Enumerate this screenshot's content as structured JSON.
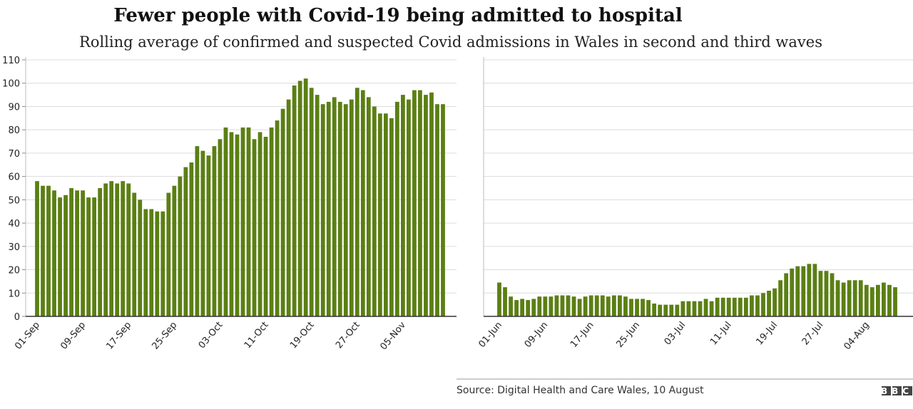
{
  "title": "Fewer people with Covid-19 being admitted to hospital",
  "subtitle": "Rolling average of confirmed and suspected Covid admissions in Wales in second and third waves",
  "source": "Source: Digital Health and Care Wales, 10 August",
  "logo": "BBC",
  "chart_data": [
    {
      "type": "bar",
      "color": "#5b7f14",
      "grid": true,
      "ytick_labels": true,
      "ylim": [
        0,
        110
      ],
      "yticks": [
        0,
        10,
        20,
        30,
        40,
        50,
        60,
        70,
        80,
        90,
        100,
        110
      ],
      "categories": [
        "01-Sep",
        null,
        null,
        null,
        null,
        null,
        null,
        null,
        "09-Sep",
        null,
        null,
        null,
        null,
        null,
        null,
        null,
        "17-Sep",
        null,
        null,
        null,
        null,
        null,
        null,
        null,
        "25-Sep",
        null,
        null,
        null,
        null,
        null,
        null,
        null,
        "03-Oct",
        null,
        null,
        null,
        null,
        null,
        null,
        null,
        "11-Oct",
        null,
        null,
        null,
        null,
        null,
        null,
        null,
        "19-Oct",
        null,
        null,
        null,
        null,
        null,
        null,
        null,
        "27-Oct",
        null,
        null,
        null,
        null,
        null,
        null,
        null,
        "05-Nov",
        null,
        null,
        null,
        null,
        null,
        null,
        null
      ],
      "values": [
        58,
        56,
        56,
        54,
        51,
        52,
        55,
        54,
        54,
        51,
        51,
        55,
        57,
        58,
        57,
        58,
        57,
        53,
        50,
        46,
        46,
        45,
        45,
        53,
        56,
        60,
        64,
        66,
        73,
        71,
        69,
        73,
        76,
        81,
        79,
        78,
        81,
        81,
        76,
        79,
        77,
        81,
        84,
        89,
        93,
        99,
        101,
        102,
        98,
        95,
        91,
        92,
        94,
        92,
        91,
        93,
        98,
        97,
        94,
        90,
        87,
        87,
        85,
        92,
        95,
        93,
        97,
        97,
        95,
        96,
        91,
        91
      ]
    },
    {
      "type": "bar",
      "color": "#5b7f14",
      "grid": true,
      "ytick_labels": false,
      "ylim": [
        0,
        110
      ],
      "yticks": [
        0,
        10,
        20,
        30,
        40,
        50,
        60,
        70,
        80,
        90,
        100,
        110
      ],
      "categories": [
        "01-Jun",
        null,
        null,
        null,
        null,
        null,
        null,
        null,
        "09-Jun",
        null,
        null,
        null,
        null,
        null,
        null,
        null,
        "17-Jun",
        null,
        null,
        null,
        null,
        null,
        null,
        null,
        "25-Jun",
        null,
        null,
        null,
        null,
        null,
        null,
        null,
        "03-Jul",
        null,
        null,
        null,
        null,
        null,
        null,
        null,
        "11-Jul",
        null,
        null,
        null,
        null,
        null,
        null,
        null,
        "19-Jul",
        null,
        null,
        null,
        null,
        null,
        null,
        null,
        "27-Jul",
        null,
        null,
        null,
        null,
        null,
        null,
        null,
        "04-Aug",
        null,
        null,
        null,
        null,
        null
      ],
      "values": [
        14.5,
        12.5,
        8.5,
        7,
        7.5,
        7,
        7.5,
        8.5,
        8.5,
        8.5,
        9,
        9,
        9,
        8.5,
        7.5,
        8.5,
        9,
        9,
        9,
        8.5,
        9,
        9,
        8.5,
        7.5,
        7.5,
        7.5,
        7,
        5.5,
        5,
        5,
        5,
        5,
        6.5,
        6.5,
        6.5,
        6.5,
        7.5,
        6.5,
        8,
        8,
        8,
        8,
        8,
        8,
        9,
        9,
        10,
        11,
        12,
        15.5,
        18.5,
        20.5,
        21.5,
        21.5,
        22.5,
        22.5,
        19.5,
        19.5,
        18.5,
        15.5,
        14.5,
        15.5,
        15.5,
        15.5,
        13.5,
        12.5,
        13.5,
        14.5,
        13.5,
        12.5
      ]
    }
  ]
}
